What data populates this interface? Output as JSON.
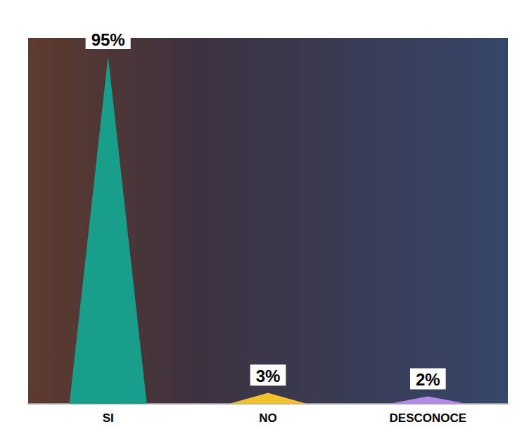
{
  "chart_data": {
    "type": "bar",
    "categories": [
      "SI",
      "NO",
      "DESCONOCE"
    ],
    "values": [
      95,
      3,
      2
    ],
    "value_labels": [
      "95%",
      "3%",
      "2%"
    ],
    "colors": [
      "#1a9e8c",
      "#f2c12e",
      "#b48ae6"
    ],
    "marker": "triangle",
    "ylim": [
      0,
      100
    ],
    "tick_labels": "x",
    "data_labels": true,
    "grid": false
  }
}
